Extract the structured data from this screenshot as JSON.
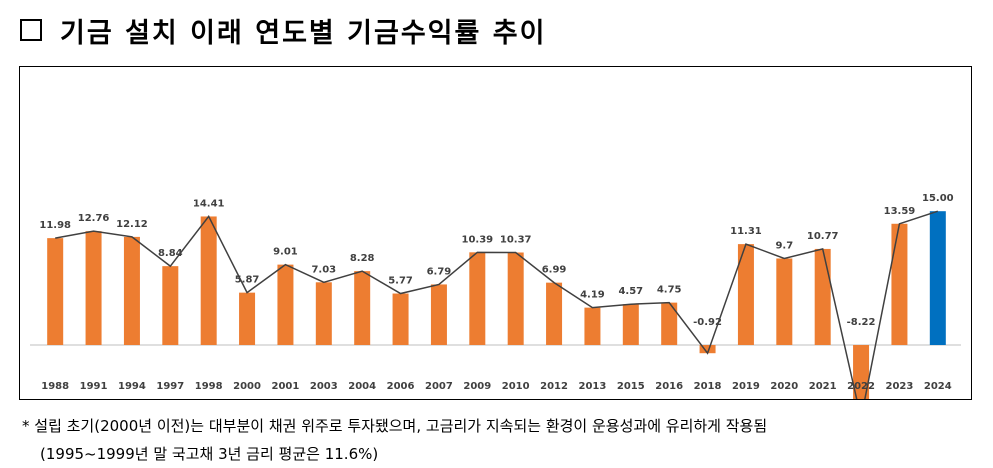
{
  "title": "기금 설치 이래 연도별 기금수익률 추이",
  "chart_data": {
    "type": "bar",
    "categories": [
      "1988",
      "1991",
      "1994",
      "1997",
      "1998",
      "2000",
      "2001",
      "2003",
      "2004",
      "2006",
      "2007",
      "2009",
      "2010",
      "2012",
      "2013",
      "2015",
      "2016",
      "2018",
      "2019",
      "2020",
      "2021",
      "2022",
      "2023",
      "2024"
    ],
    "values": [
      11.98,
      12.76,
      12.12,
      8.84,
      14.41,
      5.87,
      9.01,
      7.03,
      8.28,
      5.77,
      6.79,
      10.39,
      10.37,
      6.99,
      4.19,
      4.57,
      4.75,
      -0.92,
      11.31,
      9.7,
      10.77,
      -8.22,
      13.59,
      15.0
    ],
    "labels": [
      "11.98",
      "12.76",
      "12.12",
      "8.84",
      "14.41",
      "5.87",
      "9.01",
      "7.03",
      "8.28",
      "5.77",
      "6.79",
      "10.39",
      "10.37",
      "6.99",
      "4.19",
      "4.57",
      "4.75",
      "-0.92",
      "11.31",
      "9.7",
      "10.77",
      "-8.22",
      "13.59",
      "15.00"
    ],
    "highlight_index": 23,
    "colors": {
      "bar": "#ED7D31",
      "highlight": "#0070C0",
      "line": "#404040",
      "axis": "#BFBFBF"
    },
    "line_overlay": true,
    "ylim": [
      -9,
      16
    ],
    "grid": false,
    "title": "",
    "xlabel": "",
    "ylabel": ""
  },
  "notes": {
    "line1": "* 설립 초기(2000년 이전)는 대부분이 채권 위주로 투자됐으며, 고금리가 지속되는 환경이 운용성과에 유리하게 작용됨",
    "line2": "(1995~1999년 말 국고채 3년 금리 평균은 11.6%)"
  }
}
